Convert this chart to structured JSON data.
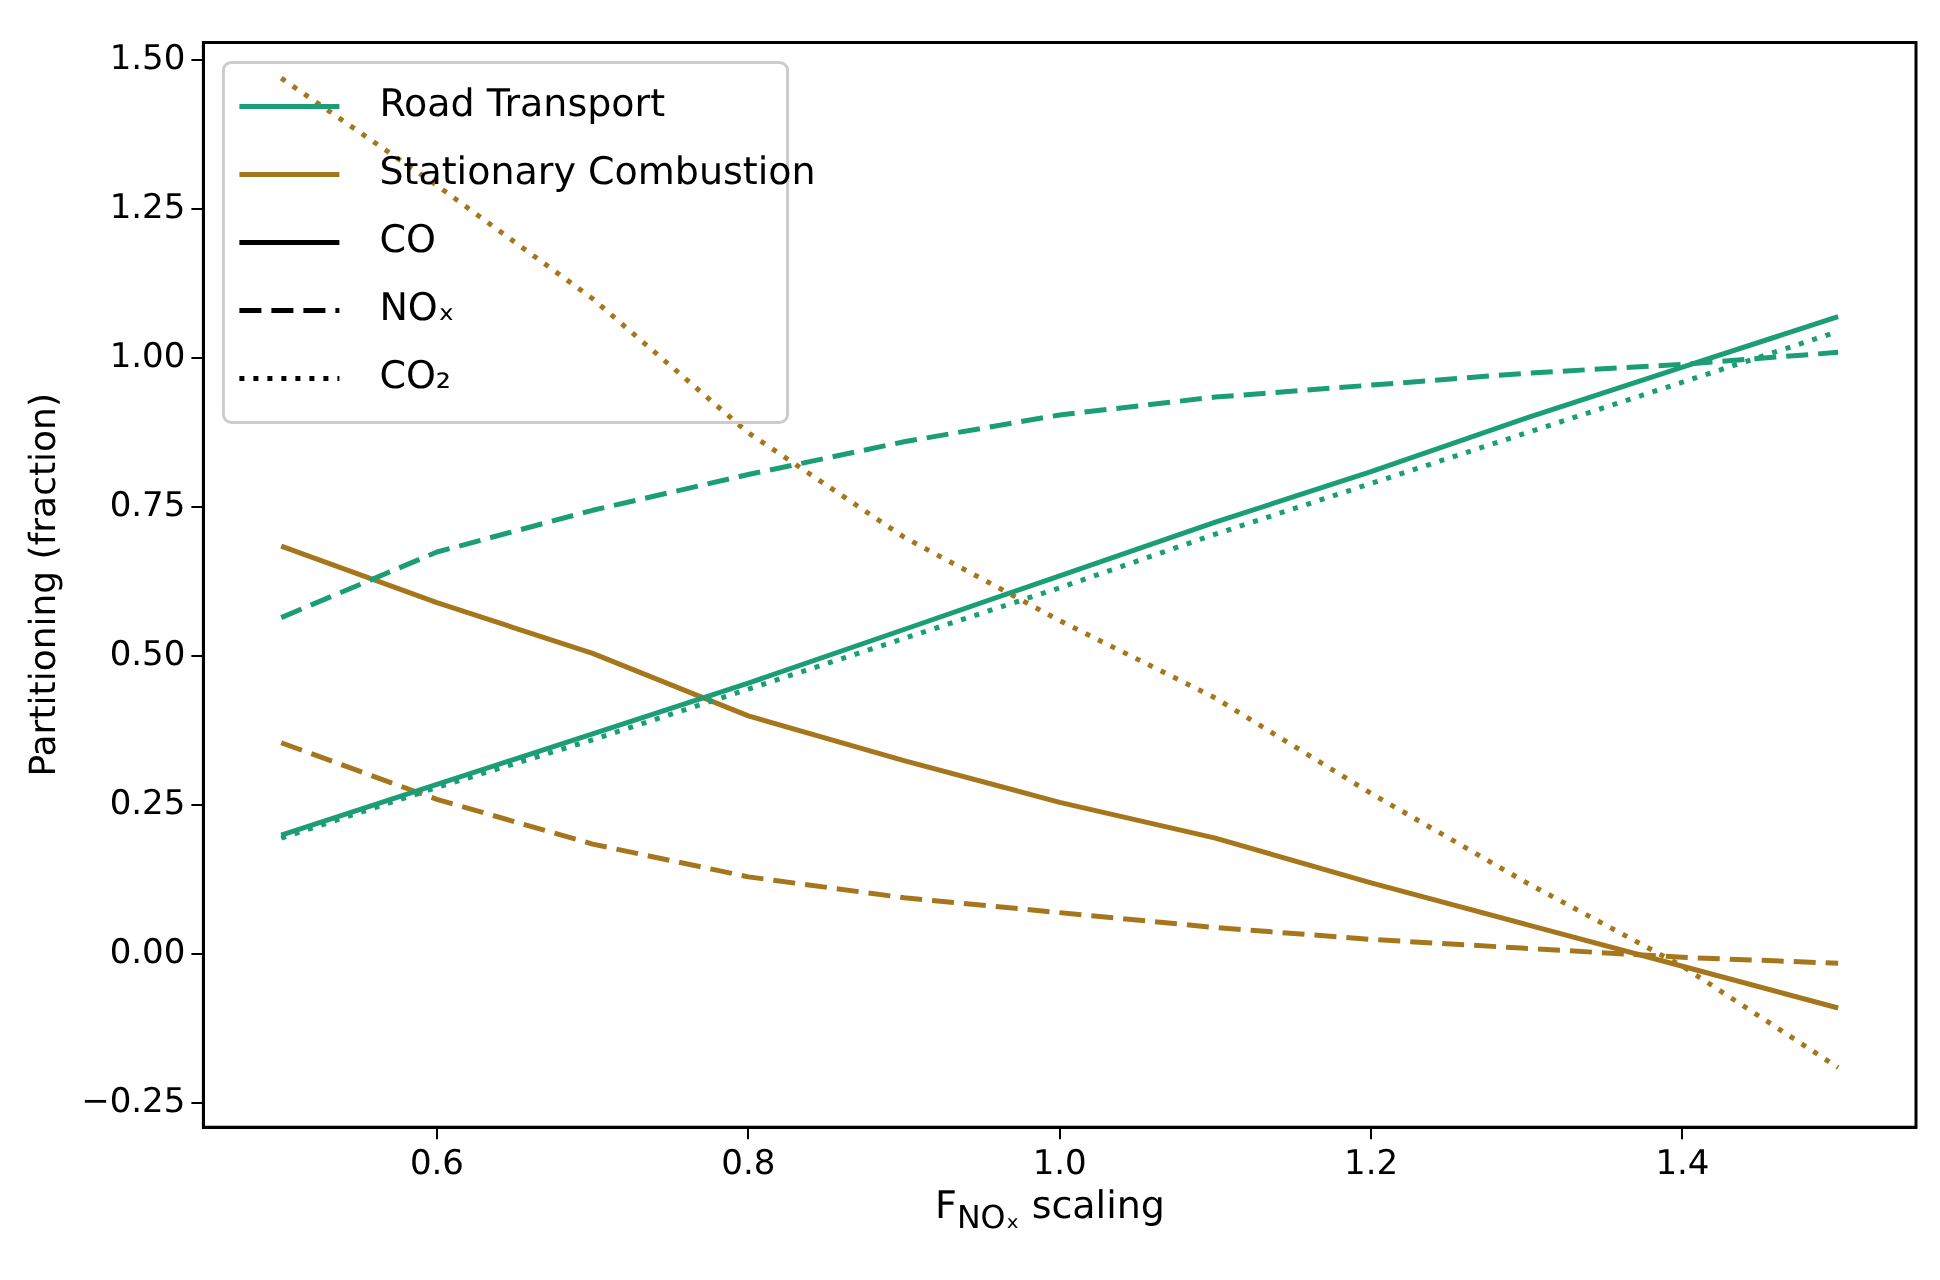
{
  "chart_data": {
    "type": "line",
    "xlabel": "F$_{NOₓ}$ scaling",
    "ylabel": "Partitioning (fraction)",
    "x": [
      0.5,
      0.6,
      0.7,
      0.8,
      0.9,
      1.0,
      1.1,
      1.2,
      1.3,
      1.4,
      1.5
    ],
    "xlim": [
      0.45,
      1.55
    ],
    "xticks": [
      0.6,
      0.8,
      {
        "value": 1.0,
        "label": "1.0"
      },
      1.2,
      1.4
    ],
    "ylim": [
      -0.29,
      1.53
    ],
    "yticks": [
      {
        "value": -0.25,
        "label": "−0.25"
      },
      {
        "value": 0,
        "label": "0.00"
      },
      {
        "value": 0.25,
        "label": "0.25"
      },
      {
        "value": 0.5,
        "label": "0.50"
      },
      {
        "value": 0.75,
        "label": "0.75"
      },
      {
        "value": 1.0,
        "label": "1.00"
      },
      {
        "value": 1.25,
        "label": "1.25"
      },
      {
        "value": 1.5,
        "label": "1.50"
      }
    ],
    "grid": false,
    "legend": "top left",
    "marker": "none",
    "series": [
      {
        "color": "#1b9e77",
        "line_style": "solid",
        "values": [
          0.2,
          0.285,
          0.37,
          0.455,
          0.545,
          0.635,
          0.725,
          0.81,
          0.9,
          0.985,
          1.07
        ]
      },
      {
        "color": "#1b9e77",
        "line_style": "dashed",
        "values": [
          0.565,
          0.675,
          0.745,
          0.805,
          0.86,
          0.905,
          0.935,
          0.955,
          0.975,
          0.99,
          1.01
        ]
      },
      {
        "color": "#1b9e77",
        "line_style": "dotted",
        "values": [
          0.195,
          0.28,
          0.36,
          0.445,
          0.53,
          0.615,
          0.705,
          0.79,
          0.875,
          0.96,
          1.045
        ]
      },
      {
        "color": "#a6761d",
        "line_style": "solid",
        "values": [
          0.685,
          0.59,
          0.505,
          0.4,
          0.325,
          0.255,
          0.195,
          0.12,
          0.05,
          -0.02,
          -0.09
        ]
      },
      {
        "color": "#a6761d",
        "line_style": "dashed",
        "values": [
          0.355,
          0.26,
          0.185,
          0.13,
          0.095,
          0.07,
          0.045,
          0.025,
          0.01,
          -0.005,
          -0.015
        ]
      },
      {
        "color": "#a6761d",
        "line_style": "dotted",
        "values": [
          1.47,
          1.29,
          1.1,
          0.875,
          0.7,
          0.56,
          0.43,
          0.27,
          0.12,
          -0.02,
          -0.19
        ]
      },
      {
        "name": "Road Transport",
        "color": "#1b9e77",
        "line_style": "solid",
        "values": [
          null,
          null,
          null,
          null,
          null,
          null,
          null,
          null,
          null,
          null,
          null
        ]
      },
      {
        "name": "Stationary Combustion",
        "color": "#a6761d",
        "line_style": "solid",
        "values": [
          null,
          null,
          null,
          null,
          null,
          null,
          null,
          null,
          null,
          null,
          null
        ]
      },
      {
        "name": "CO",
        "color": "#000000",
        "line_style": "solid",
        "values": [
          null,
          null,
          null,
          null,
          null,
          null,
          null,
          null,
          null,
          null,
          null
        ]
      },
      {
        "name": "NOₓ",
        "color": "#000000",
        "line_style": "dashed",
        "values": [
          null,
          null,
          null,
          null,
          null,
          null,
          null,
          null,
          null,
          null,
          null
        ]
      },
      {
        "name": "CO₂",
        "color": "#000000",
        "line_style": "dotted",
        "values": [
          null,
          null,
          null,
          null,
          null,
          null,
          null,
          null,
          null,
          null,
          null
        ]
      }
    ]
  }
}
